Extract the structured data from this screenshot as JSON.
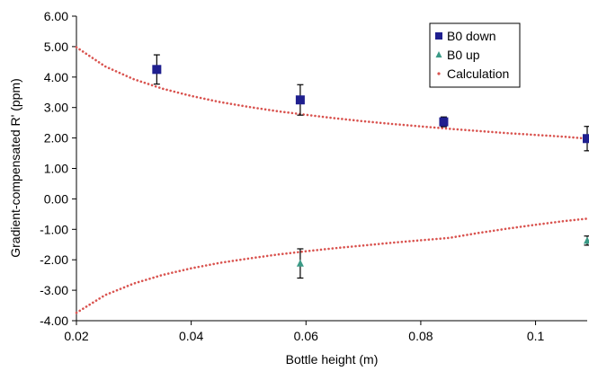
{
  "chart_data": {
    "type": "scatter",
    "title": "",
    "xlabel": "Bottle height (m)",
    "ylabel": "Gradient-compensated R' (ppm)",
    "xlim": [
      0.02,
      0.109
    ],
    "ylim": [
      -4.0,
      6.0
    ],
    "x_ticks": [
      0.02,
      0.04,
      0.06,
      0.08,
      0.1
    ],
    "x_tick_labels": [
      "0.02",
      "0.04",
      "0.06",
      "0.08",
      "0.1"
    ],
    "y_ticks": [
      6,
      5,
      4,
      3,
      2,
      1,
      0,
      -1,
      -2,
      -3,
      -4
    ],
    "y_tick_labels": [
      "6.00",
      "5.00",
      "4.00",
      "3.00",
      "2.00",
      "1.00",
      "0.00",
      "-1.00",
      "-2.00",
      "-3.00",
      "-4.00"
    ],
    "grid": false,
    "legend_position": "top-right",
    "series": [
      {
        "name": "B0 down",
        "marker": "square",
        "color": "#1f1f8f",
        "points": [
          {
            "x": 0.034,
            "y": 4.25,
            "err": 0.48
          },
          {
            "x": 0.059,
            "y": 3.25,
            "err": 0.5
          },
          {
            "x": 0.084,
            "y": 2.53,
            "err": 0.16
          },
          {
            "x": 0.109,
            "y": 1.98,
            "err": 0.4
          }
        ]
      },
      {
        "name": "B0 up",
        "marker": "triangle",
        "color": "#3a9a86",
        "points": [
          {
            "x": 0.059,
            "y": -2.12,
            "err": 0.48
          },
          {
            "x": 0.109,
            "y": -1.37,
            "err": 0.15
          }
        ]
      },
      {
        "name": "Calculation",
        "marker": "dotted-line",
        "color": "#d9534f",
        "curves": [
          {
            "x": [
              0.02,
              0.025,
              0.03,
              0.035,
              0.04,
              0.045,
              0.05,
              0.055,
              0.06,
              0.065,
              0.07,
              0.075,
              0.08,
              0.085,
              0.09,
              0.095,
              0.1,
              0.105,
              0.109
            ],
            "y": [
              4.98,
              4.35,
              3.93,
              3.62,
              3.38,
              3.18,
              3.02,
              2.88,
              2.76,
              2.65,
              2.55,
              2.46,
              2.38,
              2.3,
              2.23,
              2.16,
              2.1,
              2.04,
              1.98
            ]
          },
          {
            "x": [
              0.02,
              0.025,
              0.03,
              0.035,
              0.04,
              0.045,
              0.05,
              0.055,
              0.06,
              0.065,
              0.07,
              0.075,
              0.08,
              0.085,
              0.09,
              0.095,
              0.1,
              0.105,
              0.109
            ],
            "y": [
              -3.74,
              -3.16,
              -2.78,
              -2.5,
              -2.28,
              -2.1,
              -1.96,
              -1.83,
              -1.72,
              -1.62,
              -1.53,
              -1.44,
              -1.36,
              -1.28,
              -1.12,
              -0.98,
              -0.85,
              -0.73,
              -0.65
            ]
          }
        ]
      }
    ]
  }
}
